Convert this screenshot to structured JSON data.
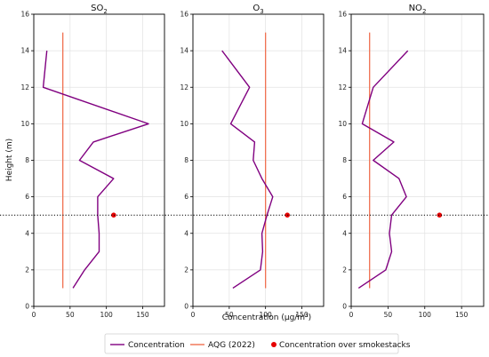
{
  "chart_data": {
    "type": "line",
    "xlabel": "Concentration (µg/m³)",
    "ylabel": "Height (m)",
    "ylim": [
      0,
      16
    ],
    "yticks": [
      0,
      2,
      4,
      6,
      8,
      10,
      12,
      14,
      16
    ],
    "xlim": [
      0,
      180
    ],
    "xticks": [
      0,
      50,
      100,
      150
    ],
    "grid": true,
    "legend_position": "bottom-center",
    "reference_height": 5,
    "colors": {
      "concentration": "#800080",
      "aqg": "#f07050",
      "smokestack": "#e60000"
    },
    "legend": [
      {
        "key": "concentration",
        "label": "Concentration"
      },
      {
        "key": "aqg",
        "label": "AQG (2022)"
      },
      {
        "key": "smokestack",
        "label": "Concentration over smokestacks"
      }
    ],
    "panels": [
      {
        "pollutant": "SO",
        "subscript": "2",
        "profile": [
          [
            54,
            1
          ],
          [
            70,
            2
          ],
          [
            90,
            3
          ],
          [
            90,
            4
          ],
          [
            88,
            5
          ],
          [
            88,
            6
          ],
          [
            110,
            7
          ],
          [
            63,
            8
          ],
          [
            82,
            9
          ],
          [
            158,
            10
          ],
          [
            13,
            12
          ],
          [
            18,
            14
          ]
        ],
        "aqg": 40,
        "smokestack": [
          110,
          5
        ]
      },
      {
        "pollutant": "O",
        "subscript": "3",
        "profile": [
          [
            55,
            1
          ],
          [
            93,
            2
          ],
          [
            96,
            3
          ],
          [
            95,
            4
          ],
          [
            102,
            5
          ],
          [
            110,
            6
          ],
          [
            95,
            7
          ],
          [
            83,
            8
          ],
          [
            85,
            9
          ],
          [
            52,
            10
          ],
          [
            78,
            12
          ],
          [
            40,
            14
          ]
        ],
        "aqg": 100,
        "smokestack": [
          130,
          5
        ]
      },
      {
        "pollutant": "NO",
        "subscript": "2",
        "profile": [
          [
            10,
            1
          ],
          [
            47,
            2
          ],
          [
            55,
            3
          ],
          [
            52,
            4
          ],
          [
            55,
            5
          ],
          [
            75,
            6
          ],
          [
            65,
            7
          ],
          [
            30,
            8
          ],
          [
            58,
            9
          ],
          [
            15,
            10
          ],
          [
            30,
            12
          ],
          [
            77,
            14
          ]
        ],
        "aqg": 25,
        "smokestack": [
          120,
          5
        ]
      }
    ]
  }
}
